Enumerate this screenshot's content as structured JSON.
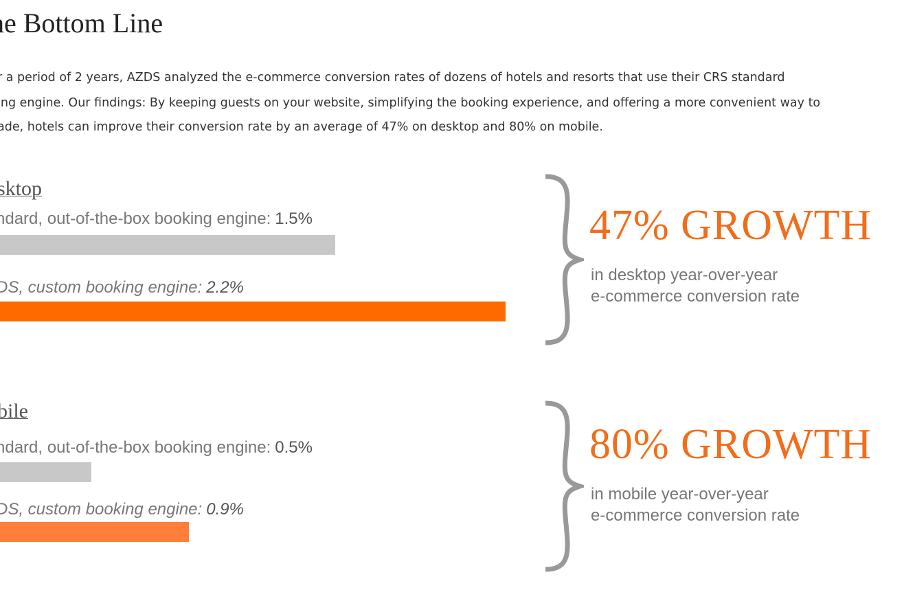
{
  "header": {
    "title": "he Bottom Line"
  },
  "intro": {
    "lines": [
      "r a period of 2 years, AZDS analyzed the e-commerce conversion rates of dozens of hotels and resorts that use their CRS standard",
      "ing engine. Our findings: By keeping guests on your website, simplifying the booking experience, and offering a more convenient way to",
      "ade, hotels can improve their conversion rate by an average of 47% on desktop and 80% on mobile."
    ]
  },
  "sections": [
    {
      "heading": "sktop",
      "bars": [
        {
          "label": "ndard, out-of-the-box booking engine:",
          "value": 1.5,
          "value_label": "1.5%"
        },
        {
          "label": "DS, custom booking engine:",
          "value": 2.2,
          "value_label": "2.2%"
        }
      ],
      "growth": "47% GROWTH",
      "caption": [
        "in desktop year-over-year",
        "e-commerce conversion rate"
      ]
    },
    {
      "heading": "bile",
      "bars": [
        {
          "label": "ndard, out-of-the-box booking engine:",
          "value": 0.5,
          "value_label": "0.5%"
        },
        {
          "label": "DS, custom booking engine:",
          "value": 0.9,
          "value_label": "0.9%"
        }
      ],
      "growth": "80% GROWTH",
      "caption": [
        "in mobile year-over-year",
        "e-commerce conversion rate"
      ]
    }
  ]
}
